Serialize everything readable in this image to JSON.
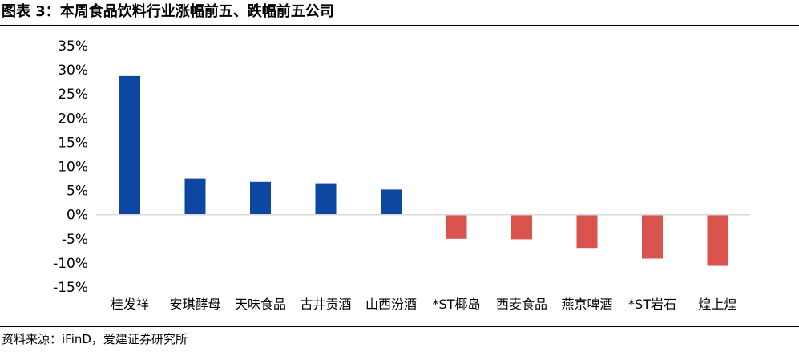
{
  "header": {
    "title": "图表 3：本周食品饮料行业涨幅前五、跌幅前五公司"
  },
  "footer": {
    "source": "资料来源：iFinD，爱建证券研究所"
  },
  "colors": {
    "gain": "#0d47a1",
    "loss": "#d9534f",
    "axis": "#d9d9d9"
  },
  "chart_data": {
    "type": "bar",
    "title": "",
    "xlabel": "",
    "ylabel": "",
    "categories": [
      "桂发祥",
      "安琪酵母",
      "天味食品",
      "古井贡酒",
      "山西汾酒",
      "*ST椰岛",
      "西麦食品",
      "燕京啤酒",
      "*ST岩石",
      "煌上煌"
    ],
    "values": [
      28.7,
      7.5,
      6.8,
      6.5,
      5.2,
      -5.0,
      -5.1,
      -6.9,
      -9.1,
      -10.6
    ],
    "ylim": [
      -15,
      35
    ],
    "yticks": [
      -15,
      -10,
      -5,
      0,
      5,
      10,
      15,
      20,
      25,
      30,
      35
    ],
    "ytick_labels": [
      "-15%",
      "-10%",
      "-5%",
      "0%",
      "5%",
      "10%",
      "15%",
      "20%",
      "25%",
      "30%",
      "35%"
    ],
    "grid": false,
    "legend": "none"
  }
}
